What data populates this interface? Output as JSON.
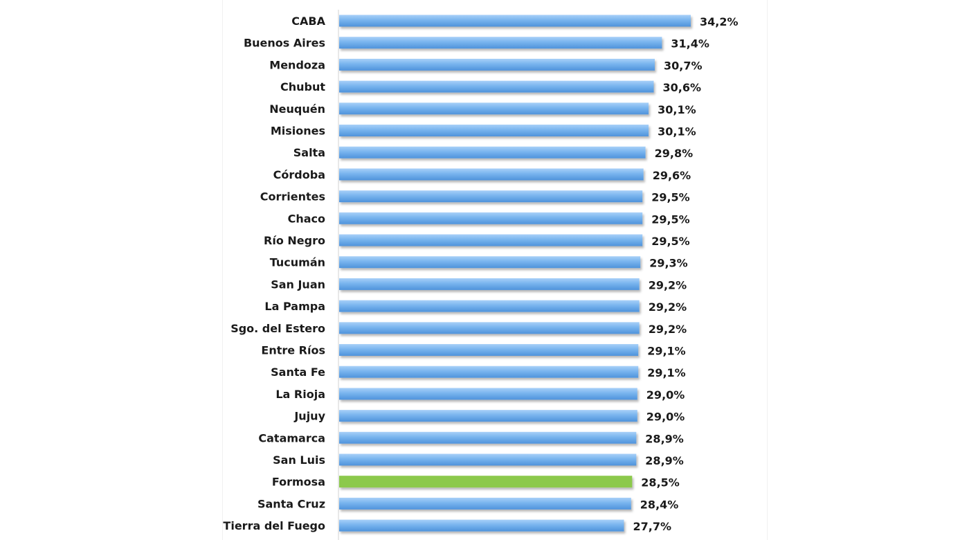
{
  "chart_data": {
    "type": "bar",
    "orientation": "horizontal",
    "categories": [
      "CABA",
      "Buenos Aires",
      "Mendoza",
      "Chubut",
      "Neuquén",
      "Misiones",
      "Salta",
      "Córdoba",
      "Corrientes",
      "Chaco",
      "Río Negro",
      "Tucumán",
      "San Juan",
      "La Pampa",
      "Sgo. del Estero",
      "Entre Ríos",
      "Santa Fe",
      "La Rioja",
      "Jujuy",
      "Catamarca",
      "San Luis",
      "Formosa",
      "Santa Cruz",
      "Tierra del Fuego"
    ],
    "values": [
      34.2,
      31.4,
      30.7,
      30.6,
      30.1,
      30.1,
      29.8,
      29.6,
      29.5,
      29.5,
      29.5,
      29.3,
      29.2,
      29.2,
      29.2,
      29.1,
      29.1,
      29.0,
      29.0,
      28.9,
      28.9,
      28.5,
      28.4,
      27.7
    ],
    "value_labels": [
      "34,2%",
      "31,4%",
      "30,7%",
      "30,6%",
      "30,1%",
      "30,1%",
      "29,8%",
      "29,6%",
      "29,5%",
      "29,5%",
      "29,5%",
      "29,3%",
      "29,2%",
      "29,2%",
      "29,2%",
      "29,1%",
      "29,1%",
      "29,0%",
      "29,0%",
      "28,9%",
      "28,9%",
      "28,5%",
      "28,4%",
      "27,7%"
    ],
    "highlight": "Formosa",
    "xlim": [
      0,
      34.2
    ],
    "grid": false,
    "colors": {
      "bar": "#78b4ee",
      "bar_light": "#a8d0f8",
      "bar_dark": "#4f93db",
      "highlight": "#8cc94c",
      "axis": "#d0d0d0"
    }
  }
}
